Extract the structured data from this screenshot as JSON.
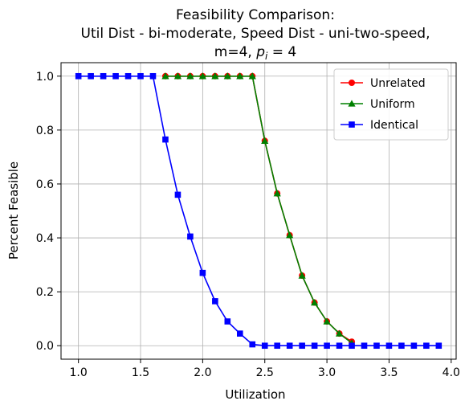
{
  "chart_data": {
    "type": "line",
    "title_lines": [
      "Feasibility Comparison:",
      "Util Dist - bi-moderate, Speed Dist - uni-two-speed,"
    ],
    "title_line3_prefix": "m=4, ",
    "title_line3_var": "p",
    "title_line3_sub": "i",
    "title_line3_suffix": " = 4",
    "xlabel": "Utilization",
    "ylabel": "Percent Feasible",
    "xlim": [
      0.86,
      4.04
    ],
    "ylim": [
      -0.05,
      1.05
    ],
    "xticks": [
      1.0,
      1.5,
      2.0,
      2.5,
      3.0,
      3.5,
      4.0
    ],
    "xtick_labels": [
      "1.0",
      "1.5",
      "2.0",
      "2.5",
      "3.0",
      "3.5",
      "4.0"
    ],
    "yticks": [
      0.0,
      0.2,
      0.4,
      0.6,
      0.8,
      1.0
    ],
    "ytick_labels": [
      "0.0",
      "0.2",
      "0.4",
      "0.6",
      "0.8",
      "1.0"
    ],
    "grid": true,
    "legend_position": "top-right",
    "series": [
      {
        "name": "Unrelated",
        "color": "#ff0000",
        "marker": "circle",
        "x": [
          1.7,
          1.8,
          1.9,
          2.0,
          2.1,
          2.2,
          2.3,
          2.4,
          2.5,
          2.6,
          2.7,
          2.8,
          2.9,
          3.0,
          3.1,
          3.2
        ],
        "y": [
          1.0,
          1.0,
          1.0,
          1.0,
          1.0,
          1.0,
          1.0,
          1.0,
          0.76,
          0.565,
          0.41,
          0.26,
          0.16,
          0.09,
          0.045,
          0.015
        ]
      },
      {
        "name": "Uniform",
        "color": "#008000",
        "marker": "triangle",
        "x": [
          1.7,
          1.8,
          1.9,
          2.0,
          2.1,
          2.2,
          2.3,
          2.4,
          2.5,
          2.6,
          2.7,
          2.8,
          2.9,
          3.0,
          3.1,
          3.2
        ],
        "y": [
          1.0,
          1.0,
          1.0,
          1.0,
          1.0,
          1.0,
          1.0,
          1.0,
          0.76,
          0.565,
          0.41,
          0.26,
          0.16,
          0.09,
          0.045,
          0.01
        ]
      },
      {
        "name": "Identical",
        "color": "#0000ff",
        "marker": "square",
        "x": [
          1.0,
          1.1,
          1.2,
          1.3,
          1.4,
          1.5,
          1.6,
          1.7,
          1.8,
          1.9,
          2.0,
          2.1,
          2.2,
          2.3,
          2.4,
          2.5,
          2.6,
          2.7,
          2.8,
          2.9,
          3.0,
          3.1,
          3.2,
          3.3,
          3.4,
          3.5,
          3.6,
          3.7,
          3.8,
          3.9
        ],
        "y": [
          1.0,
          1.0,
          1.0,
          1.0,
          1.0,
          1.0,
          1.0,
          0.765,
          0.56,
          0.405,
          0.27,
          0.165,
          0.09,
          0.045,
          0.005,
          0.0,
          0.0,
          0.0,
          0.0,
          0.0,
          0.0,
          0.0,
          0.0,
          0.0,
          0.0,
          0.0,
          0.0,
          0.0,
          0.0,
          0.0
        ]
      }
    ]
  }
}
